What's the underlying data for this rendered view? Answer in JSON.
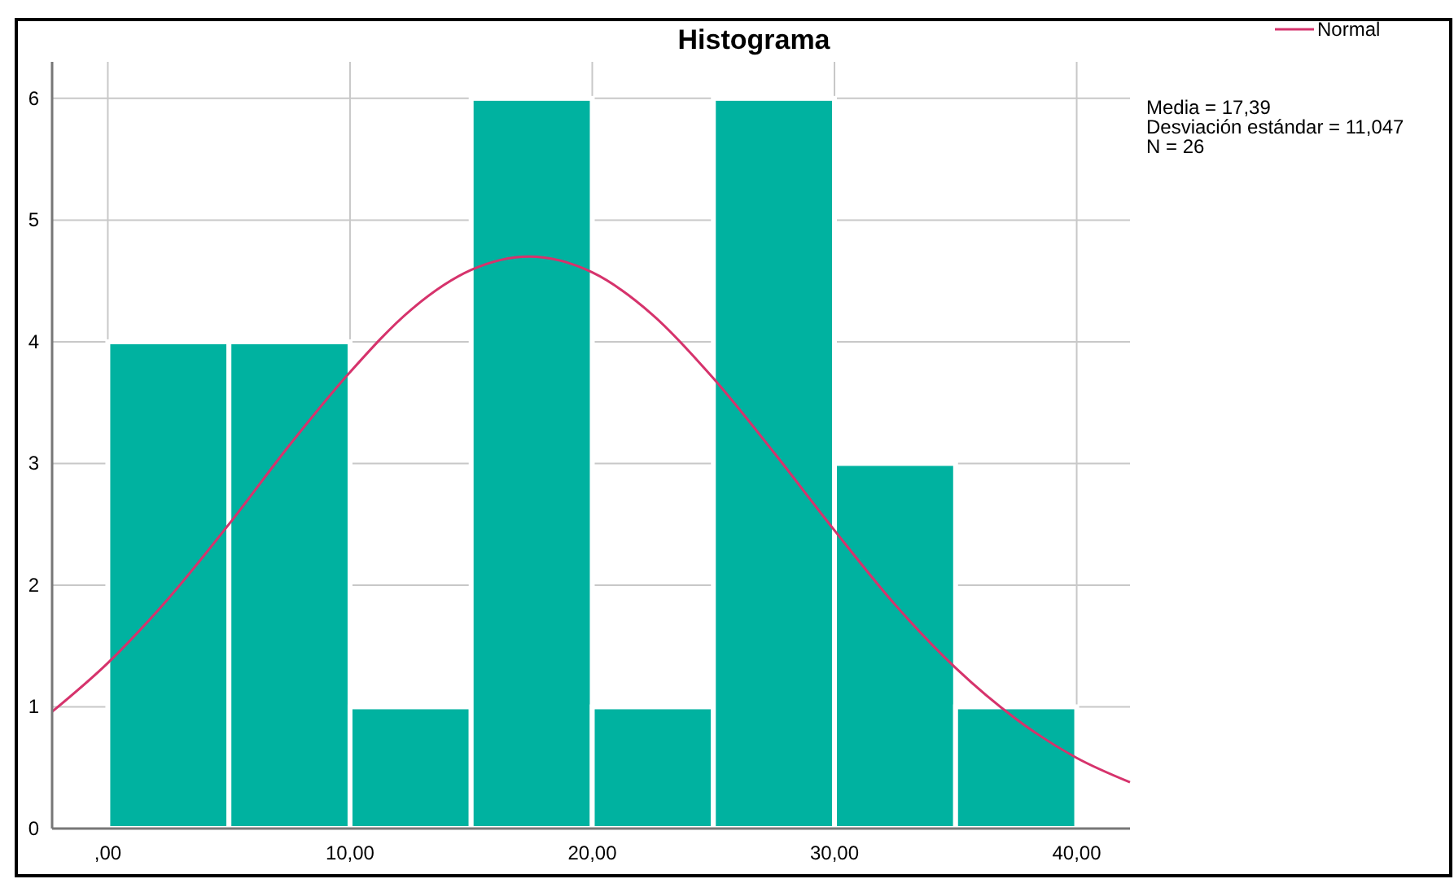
{
  "chart_data": {
    "type": "histogram",
    "title": "Histograma",
    "bins": [
      0,
      5,
      10,
      15,
      20,
      25,
      30,
      35,
      40
    ],
    "series": [
      {
        "color": "#00b2a0",
        "values": [
          4,
          4,
          1,
          6,
          1,
          6,
          3,
          1
        ]
      },
      {
        "type": "line",
        "name": "Normal",
        "color": "#d6336c",
        "x": [
          -2.3,
          0,
          2.5,
          5,
          7.5,
          10,
          12.5,
          15,
          17.39,
          20,
          22.5,
          25,
          27.5,
          30,
          32.5,
          35,
          37.5,
          40,
          42.2
        ],
        "values": [
          0.96,
          1.36,
          1.89,
          2.5,
          3.15,
          3.75,
          4.26,
          4.59,
          4.7,
          4.57,
          4.22,
          3.7,
          3.09,
          2.45,
          1.84,
          1.32,
          0.9,
          0.58,
          0.38
        ]
      }
    ],
    "xlim": [
      -2.3,
      42.2
    ],
    "ylim": [
      0,
      6.3
    ],
    "xticks": [
      {
        "value": 0,
        "label": ",00"
      },
      {
        "value": 10,
        "label": "10,00"
      },
      {
        "value": 20,
        "label": "20,00"
      },
      {
        "value": 30,
        "label": "30,00"
      },
      {
        "value": 40,
        "label": "40,00"
      }
    ],
    "yticks": [
      0,
      1,
      2,
      3,
      4,
      5,
      6
    ],
    "grid": true,
    "legend": "top right",
    "marker": "none",
    "line_style": "solid",
    "annotations": [
      "Media = 17,39",
      "Desviación estándar = 11,047",
      "N = 26"
    ]
  }
}
